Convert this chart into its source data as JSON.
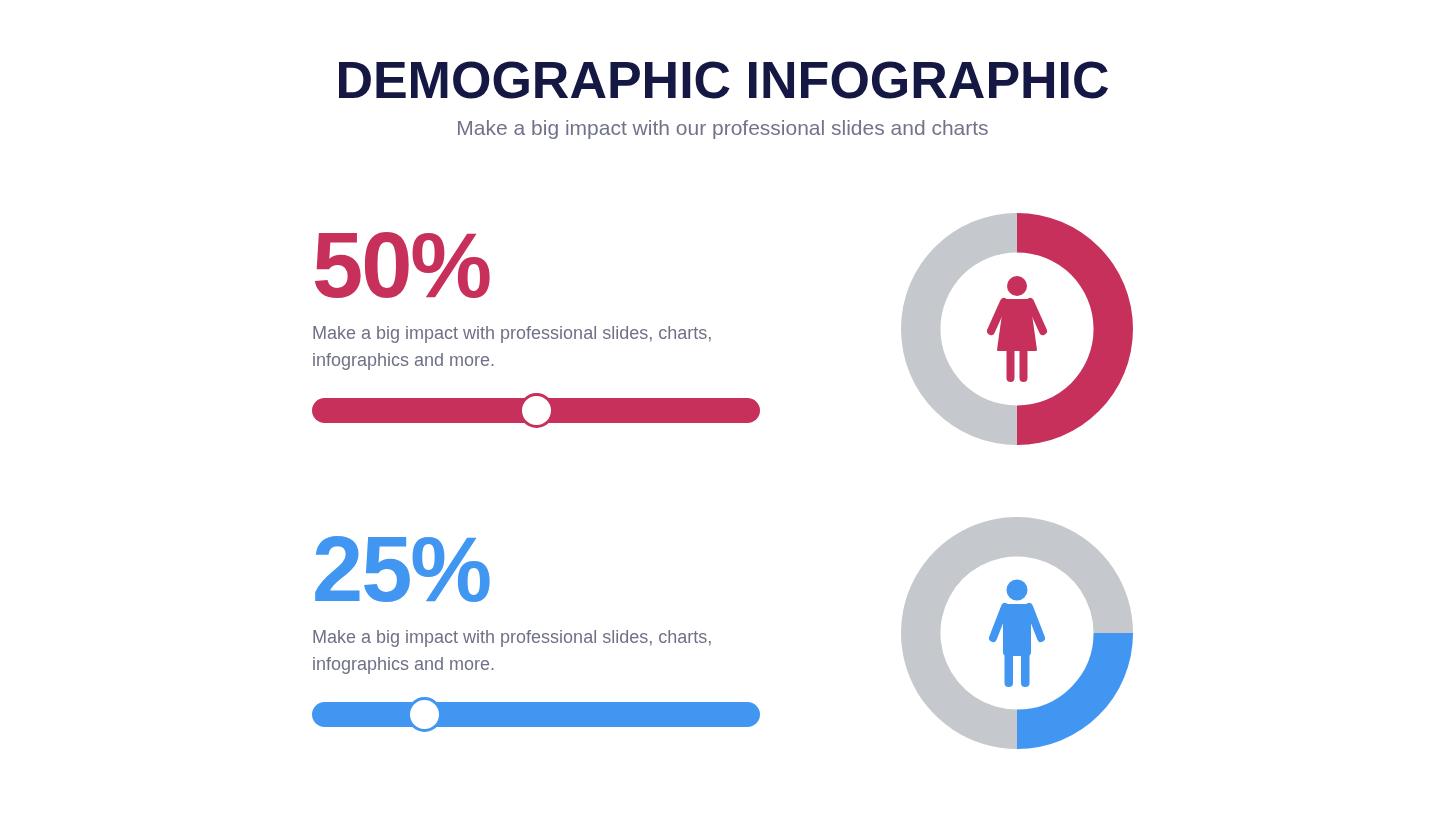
{
  "chart_data": [
    {
      "type": "donut",
      "title": "DEMOGRAPHIC INFOGRAPHIC",
      "subtitle": "Make a big impact with our professional slides and charts",
      "categories": [
        null,
        null
      ],
      "values": [
        50,
        50
      ],
      "colors": [
        "#c7305a",
        "#c5c8cc"
      ],
      "annotations": [
        "50%",
        "Make a big impact with professional slides, charts, infographics and more."
      ]
    },
    {
      "type": "donut",
      "categories": [
        null,
        null
      ],
      "values": [
        25,
        75
      ],
      "colors": [
        "#4196f1",
        "#c5c8cc"
      ],
      "annotations": [
        "25%",
        "Make a big impact with professional slides, charts, infographics and more."
      ]
    }
  ]
}
